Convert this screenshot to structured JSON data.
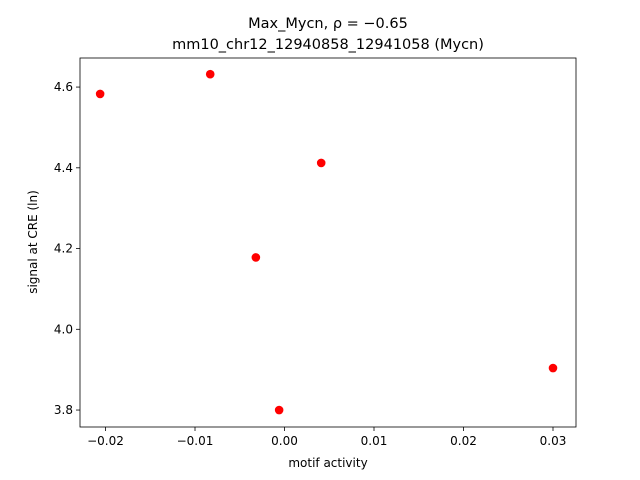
{
  "chart_data": {
    "type": "scatter",
    "title": "Max_Mycn, ρ = −0.65",
    "subtitle": "mm10_chr12_12940858_12941058 (Mycn)",
    "x_label": "motif activity",
    "y_label": "signal at CRE (ln)",
    "color": "#ff0000",
    "x": [
      -0.0206,
      -0.0083,
      0.0041,
      -0.0032,
      -0.0006,
      0.03
    ],
    "values": [
      4.583,
      4.632,
      4.412,
      4.178,
      3.8,
      3.904
    ],
    "xlim": [
      -0.02285,
      0.03257
    ],
    "ylim": [
      3.758,
      4.672
    ],
    "xticks": [
      {
        "value": -0.02,
        "label": "−0.02"
      },
      {
        "value": -0.01,
        "label": "−0.01"
      },
      {
        "value": 0,
        "label": "0.00"
      },
      0.01,
      0.02,
      0.03
    ],
    "yticks": [
      3.8,
      {
        "value": 4.0,
        "label": "4.0"
      },
      4.2,
      4.4,
      4.6
    ]
  }
}
